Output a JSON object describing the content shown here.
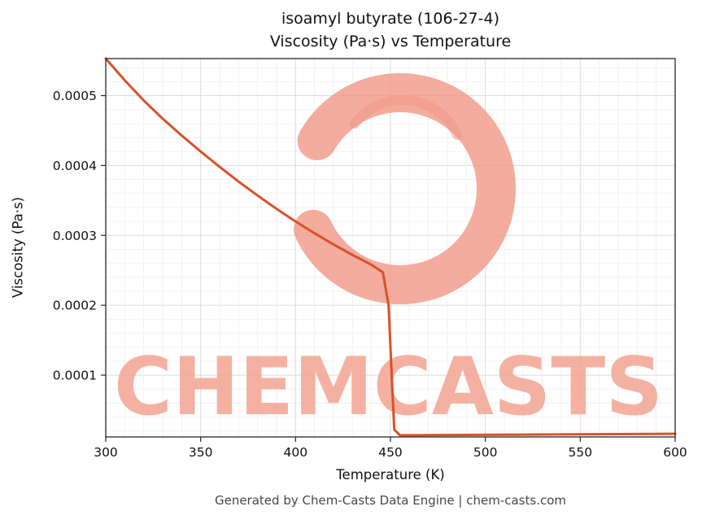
{
  "title": {
    "line1": "isoamyl butyrate (106-27-4)",
    "line2": "Viscosity (Pa·s) vs Temperature"
  },
  "footer": "Generated by Chem-Casts Data Engine | chem-casts.com",
  "watermark": {
    "text": "CHEMCASTS",
    "text_color": "#f3a492",
    "logo_color": "#f09784"
  },
  "chart_data": {
    "type": "line",
    "title": "isoamyl butyrate (106-27-4) — Viscosity (Pa·s) vs Temperature",
    "xlabel": "Temperature (K)",
    "ylabel": "Viscosity (Pa·s)",
    "xlim": [
      300,
      600
    ],
    "ylim": [
      1.16e-05,
      0.000553
    ],
    "x_ticks": [
      300,
      350,
      400,
      450,
      500,
      550,
      600
    ],
    "y_ticks": [
      0.0001,
      0.0002,
      0.0003,
      0.0004,
      0.0005
    ],
    "x_tick_labels": [
      "300",
      "350",
      "400",
      "450",
      "500",
      "550",
      "600"
    ],
    "y_tick_labels": [
      "0.0001",
      "0.0002",
      "0.0003",
      "0.0004",
      "0.0005"
    ],
    "x_minor_step": 10,
    "y_minor_step": 2e-05,
    "grid": true,
    "legend": "none",
    "line_color": "#d9512c",
    "series": [
      {
        "name": "Viscosity (Pa·s)",
        "color": "#d9512c",
        "points": [
          [
            300,
            0.000553
          ],
          [
            310,
            0.000522
          ],
          [
            320,
            0.000493
          ],
          [
            330,
            0.000467
          ],
          [
            340,
            0.000443
          ],
          [
            350,
            0.00042
          ],
          [
            360,
            0.000398
          ],
          [
            370,
            0.000377
          ],
          [
            380,
            0.000357
          ],
          [
            390,
            0.000338
          ],
          [
            400,
            0.00032
          ],
          [
            410,
            0.000303
          ],
          [
            420,
            0.000287
          ],
          [
            430,
            0.000272
          ],
          [
            440,
            0.000258
          ],
          [
            446,
            0.000247
          ],
          [
            449,
            0.0002
          ],
          [
            451,
            8e-05
          ],
          [
            452,
            2.2e-05
          ],
          [
            455,
            1.4e-05
          ],
          [
            470,
            1.42e-05
          ],
          [
            490,
            1.45e-05
          ],
          [
            510,
            1.48e-05
          ],
          [
            530,
            1.51e-05
          ],
          [
            550,
            1.54e-05
          ],
          [
            570,
            1.57e-05
          ],
          [
            600,
            1.61e-05
          ]
        ]
      }
    ]
  }
}
